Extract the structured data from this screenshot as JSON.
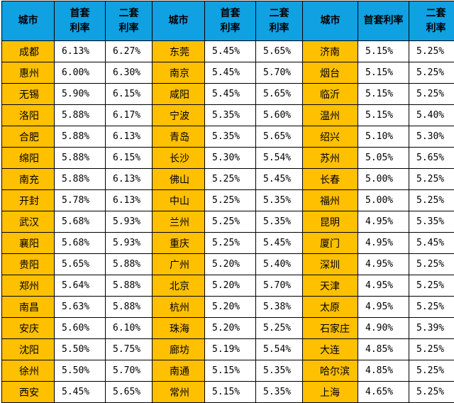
{
  "headers": [
    "城市",
    "首套\n利率",
    "二套\n利率",
    "城市",
    "首套\n利率",
    "二套\n利率",
    "城市",
    "首套利率",
    "二套\n利率"
  ],
  "rows": [
    [
      "成都",
      "6.13%",
      "6.27%",
      "东莞",
      "5.45%",
      "5.65%",
      "济南",
      "5.15%",
      "5.25%"
    ],
    [
      "惠州",
      "6.00%",
      "6.30%",
      "南京",
      "5.45%",
      "5.70%",
      "烟台",
      "5.15%",
      "5.25%"
    ],
    [
      "无锡",
      "5.90%",
      "6.15%",
      "咸阳",
      "5.45%",
      "5.65%",
      "临沂",
      "5.15%",
      "5.25%"
    ],
    [
      "洛阳",
      "5.88%",
      "6.17%",
      "宁波",
      "5.35%",
      "5.60%",
      "温州",
      "5.15%",
      "5.40%"
    ],
    [
      "合肥",
      "5.88%",
      "6.13%",
      "青岛",
      "5.35%",
      "5.65%",
      "绍兴",
      "5.10%",
      "5.30%"
    ],
    [
      "绵阳",
      "5.88%",
      "6.15%",
      "长沙",
      "5.30%",
      "5.54%",
      "苏州",
      "5.05%",
      "5.65%"
    ],
    [
      "南充",
      "5.88%",
      "6.13%",
      "佛山",
      "5.25%",
      "5.45%",
      "长春",
      "5.00%",
      "5.25%"
    ],
    [
      "开封",
      "5.78%",
      "6.13%",
      "中山",
      "5.25%",
      "5.35%",
      "福州",
      "5.00%",
      "5.25%"
    ],
    [
      "武汉",
      "5.68%",
      "5.93%",
      "兰州",
      "5.25%",
      "5.35%",
      "昆明",
      "4.95%",
      "5.35%"
    ],
    [
      "襄阳",
      "5.68%",
      "5.93%",
      "重庆",
      "5.25%",
      "5.45%",
      "厦门",
      "4.95%",
      "5.45%"
    ],
    [
      "贵阳",
      "5.65%",
      "5.88%",
      "广州",
      "5.20%",
      "5.40%",
      "深圳",
      "4.95%",
      "5.25%"
    ],
    [
      "郑州",
      "5.64%",
      "5.88%",
      "北京",
      "5.20%",
      "5.70%",
      "天津",
      "4.95%",
      "5.25%"
    ],
    [
      "南昌",
      "5.63%",
      "5.88%",
      "杭州",
      "5.20%",
      "5.38%",
      "太原",
      "4.95%",
      "5.25%"
    ],
    [
      "安庆",
      "5.60%",
      "6.10%",
      "珠海",
      "5.20%",
      "5.25%",
      "石家庄",
      "4.90%",
      "5.39%"
    ],
    [
      "沈阳",
      "5.50%",
      "5.75%",
      "廊坊",
      "5.19%",
      "5.54%",
      "大连",
      "4.85%",
      "5.25%"
    ],
    [
      "徐州",
      "5.50%",
      "5.70%",
      "南通",
      "5.15%",
      "5.35%",
      "哈尔滨",
      "4.85%",
      "5.25%"
    ],
    [
      "西安",
      "5.45%",
      "5.65%",
      "常州",
      "5.15%",
      "5.35%",
      "上海",
      "4.65%",
      "5.25%"
    ]
  ],
  "colors": {
    "header_bg": "#0fa1e2",
    "city_bg": "#ffc000",
    "rate_bg": "#ffffff"
  }
}
